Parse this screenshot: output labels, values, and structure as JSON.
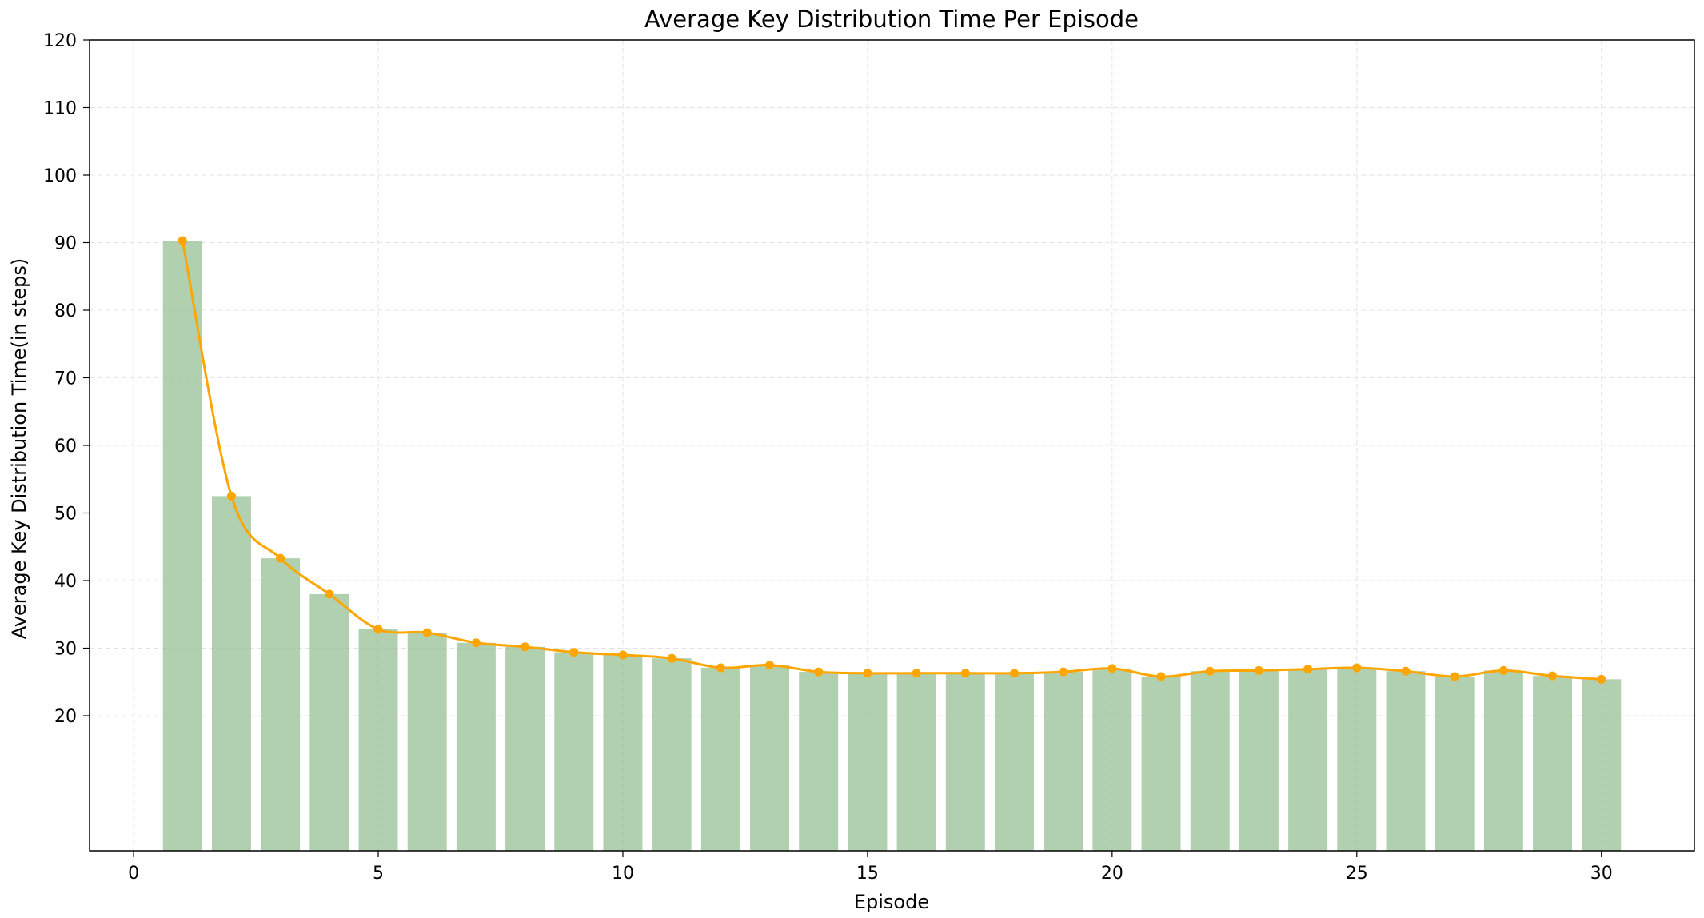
{
  "chart_data": {
    "type": "bar",
    "title": "Average Key Distribution Time Per Episode",
    "xlabel": "Episode",
    "ylabel": "Average Key Distribution Time(in steps)",
    "xlim": [
      -0.9,
      31.9
    ],
    "ylim": [
      0,
      120
    ],
    "xticks": [
      0,
      5,
      10,
      15,
      20,
      25,
      30
    ],
    "yticks": [
      20,
      30,
      40,
      50,
      60,
      70,
      80,
      90,
      100,
      110,
      120
    ],
    "grid": true,
    "episodes": [
      1,
      2,
      3,
      4,
      5,
      6,
      7,
      8,
      9,
      10,
      11,
      12,
      13,
      14,
      15,
      16,
      17,
      18,
      19,
      20,
      21,
      22,
      23,
      24,
      25,
      26,
      27,
      28,
      29,
      30
    ],
    "values": [
      90.3,
      52.5,
      43.3,
      38.0,
      32.8,
      32.3,
      30.8,
      30.2,
      29.4,
      29.0,
      28.5,
      27.1,
      27.5,
      26.5,
      26.3,
      26.3,
      26.3,
      26.3,
      26.5,
      27.0,
      25.8,
      26.6,
      26.7,
      26.9,
      27.1,
      26.6,
      25.8,
      26.7,
      25.9,
      25.4
    ],
    "colors": {
      "bar": "#8fbc8f",
      "line": "#ffa500",
      "grid": "#e3e3e3"
    }
  }
}
